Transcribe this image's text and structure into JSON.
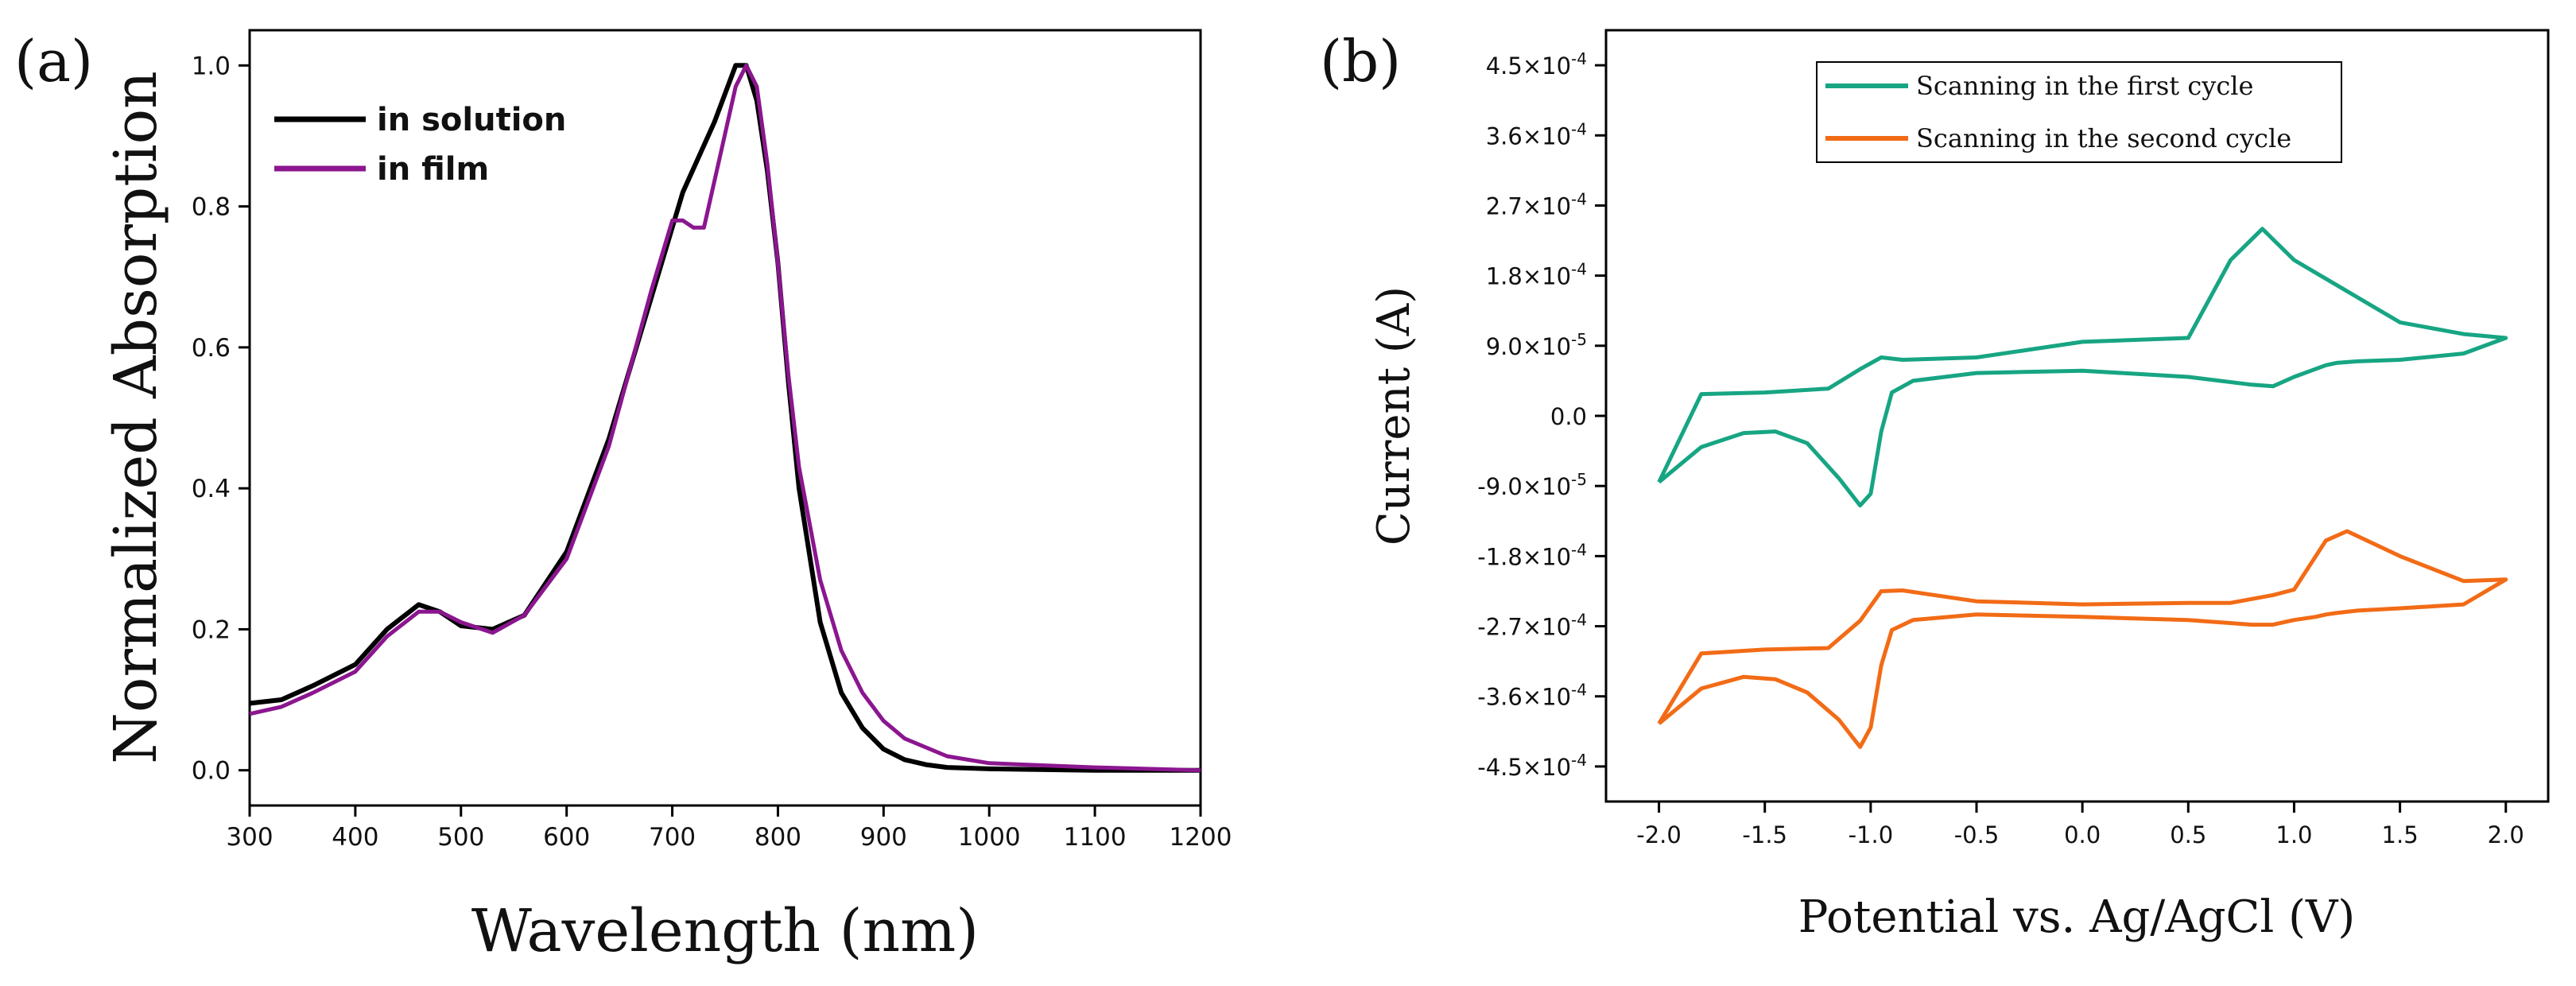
{
  "panel_labels": [
    "(a)",
    "(b)"
  ],
  "chart_data": [
    {
      "type": "line",
      "panel": "(a)",
      "title": "",
      "xlabel": "Wavelength (nm)",
      "ylabel": "Normalized Absorption",
      "xlim": [
        300,
        1200
      ],
      "ylim": [
        -0.05,
        1.05
      ],
      "xticks": [
        300,
        400,
        500,
        600,
        700,
        800,
        900,
        1000,
        1100,
        1200
      ],
      "yticks": [
        0.0,
        0.2,
        0.4,
        0.6,
        0.8,
        1.0
      ],
      "xtick_labels": [
        "300",
        "400",
        "500",
        "600",
        "700",
        "800",
        "900",
        "1000",
        "1100",
        "1200"
      ],
      "ytick_labels": [
        "0.0",
        "0.2",
        "0.4",
        "0.6",
        "0.8",
        "1.0"
      ],
      "legend_position": "top-left",
      "series": [
        {
          "name": "in solution",
          "color": "#000000",
          "x": [
            300,
            330,
            360,
            400,
            430,
            460,
            480,
            500,
            530,
            560,
            600,
            640,
            680,
            710,
            740,
            760,
            770,
            780,
            790,
            800,
            810,
            820,
            840,
            860,
            880,
            900,
            920,
            940,
            960,
            1000,
            1100,
            1200
          ],
          "y": [
            0.095,
            0.1,
            0.12,
            0.15,
            0.2,
            0.235,
            0.225,
            0.205,
            0.2,
            0.22,
            0.31,
            0.47,
            0.67,
            0.82,
            0.92,
            1.0,
            1.0,
            0.95,
            0.85,
            0.72,
            0.55,
            0.4,
            0.21,
            0.11,
            0.06,
            0.03,
            0.015,
            0.008,
            0.004,
            0.002,
            0.0,
            0.0
          ]
        },
        {
          "name": "in film",
          "color": "#8b168f",
          "x": [
            300,
            330,
            360,
            400,
            430,
            460,
            480,
            500,
            530,
            560,
            600,
            640,
            680,
            700,
            710,
            720,
            730,
            745,
            760,
            770,
            780,
            790,
            800,
            810,
            820,
            840,
            860,
            880,
            900,
            920,
            960,
            1000,
            1100,
            1200
          ],
          "y": [
            0.08,
            0.09,
            0.11,
            0.14,
            0.19,
            0.225,
            0.225,
            0.21,
            0.195,
            0.22,
            0.3,
            0.46,
            0.68,
            0.78,
            0.78,
            0.77,
            0.77,
            0.87,
            0.97,
            1.0,
            0.97,
            0.86,
            0.72,
            0.56,
            0.43,
            0.27,
            0.17,
            0.11,
            0.07,
            0.045,
            0.02,
            0.01,
            0.004,
            0.0
          ]
        }
      ]
    },
    {
      "type": "line",
      "panel": "(b)",
      "title": "",
      "xlabel": "Potential vs. Ag/AgCl (V)",
      "ylabel": "Current (A)",
      "xlim": [
        -2.25,
        2.2
      ],
      "ylim": [
        -0.000495,
        0.000495
      ],
      "xticks": [
        -2.0,
        -1.5,
        -1.0,
        -0.5,
        0.0,
        0.5,
        1.0,
        1.5,
        2.0
      ],
      "xtick_labels": [
        "-2.0",
        "-1.5",
        "-1.0",
        "-0.5",
        "0.0",
        "0.5",
        "1.0",
        "1.5",
        "2.0"
      ],
      "yticks": [
        0.00045,
        0.00036,
        0.00027,
        0.00018,
        9e-05,
        0.0,
        -9e-05,
        -0.00018,
        -0.00027,
        -0.00036,
        -0.00045
      ],
      "ytick_labels": [
        {
          "mant": "4.5",
          "exp": "-4"
        },
        {
          "mant": "3.6",
          "exp": "-4"
        },
        {
          "mant": "2.7",
          "exp": "-4"
        },
        {
          "mant": "1.8",
          "exp": "-4"
        },
        {
          "mant": "9.0",
          "exp": "-5"
        },
        {
          "mant": "0.0",
          "exp": ""
        },
        {
          "mant": "-9.0",
          "exp": "-5"
        },
        {
          "mant": "-1.8",
          "exp": "-4"
        },
        {
          "mant": "-2.7",
          "exp": "-4"
        },
        {
          "mant": "-3.6",
          "exp": "-4"
        },
        {
          "mant": "-4.5",
          "exp": "-4"
        }
      ],
      "legend_position": "top-center",
      "series": [
        {
          "name": "Scanning in the first cycle",
          "color": "#17a583",
          "x": [
            -2.0,
            -1.8,
            -1.6,
            -1.45,
            -1.3,
            -1.15,
            -1.05,
            -1.0,
            -0.95,
            -0.9,
            -0.8,
            -0.5,
            0.0,
            0.5,
            0.8,
            0.9,
            1.0,
            1.1,
            1.15,
            1.2,
            1.3,
            1.5,
            1.8,
            2.0,
            2.0,
            1.8,
            1.5,
            1.0,
            0.85,
            0.7,
            0.5,
            0.0,
            -0.5,
            -0.85,
            -0.95,
            -1.05,
            -1.2,
            -1.5,
            -1.8,
            -2.0
          ],
          "y": [
            -8.5e-05,
            -4e-05,
            -2.2e-05,
            -2e-05,
            -3.5e-05,
            -8e-05,
            -0.000115,
            -0.0001,
            -2e-05,
            3e-05,
            4.5e-05,
            5.5e-05,
            5.8e-05,
            5e-05,
            4e-05,
            3.8e-05,
            5e-05,
            6e-05,
            6.5e-05,
            6.8e-05,
            7e-05,
            7.2e-05,
            8e-05,
            0.0001,
            0.0001,
            0.000105,
            0.00012,
            0.0002,
            0.00024,
            0.0002,
            0.0001,
            9.5e-05,
            7.5e-05,
            7.2e-05,
            7.5e-05,
            6e-05,
            3.5e-05,
            3e-05,
            2.8e-05,
            -8.5e-05
          ]
        },
        {
          "name": "Scanning in the second cycle",
          "color": "#f26b16",
          "x": [
            -2.0,
            -1.8,
            -1.6,
            -1.45,
            -1.3,
            -1.15,
            -1.05,
            -1.0,
            -0.95,
            -0.9,
            -0.8,
            -0.5,
            0.0,
            0.5,
            0.8,
            0.9,
            1.0,
            1.1,
            1.15,
            1.2,
            1.3,
            1.5,
            1.8,
            2.0,
            2.0,
            1.8,
            1.5,
            1.25,
            1.15,
            1.0,
            0.9,
            0.7,
            0.5,
            0.0,
            -0.5,
            -0.85,
            -0.95,
            -1.05,
            -1.2,
            -1.5,
            -1.8,
            -2.0
          ],
          "y": [
            -0.000395,
            -0.00035,
            -0.000335,
            -0.000338,
            -0.000355,
            -0.00039,
            -0.000425,
            -0.0004,
            -0.00032,
            -0.000275,
            -0.000262,
            -0.000255,
            -0.000258,
            -0.000262,
            -0.000268,
            -0.000268,
            -0.000262,
            -0.000258,
            -0.000255,
            -0.000253,
            -0.00025,
            -0.000247,
            -0.000242,
            -0.00021,
            -0.00021,
            -0.000212,
            -0.00018,
            -0.000148,
            -0.00016,
            -0.000223,
            -0.00023,
            -0.00024,
            -0.00024,
            -0.000242,
            -0.000238,
            -0.000224,
            -0.000225,
            -0.000263,
            -0.000298,
            -0.0003,
            -0.000305,
            -0.000395
          ]
        }
      ]
    }
  ]
}
